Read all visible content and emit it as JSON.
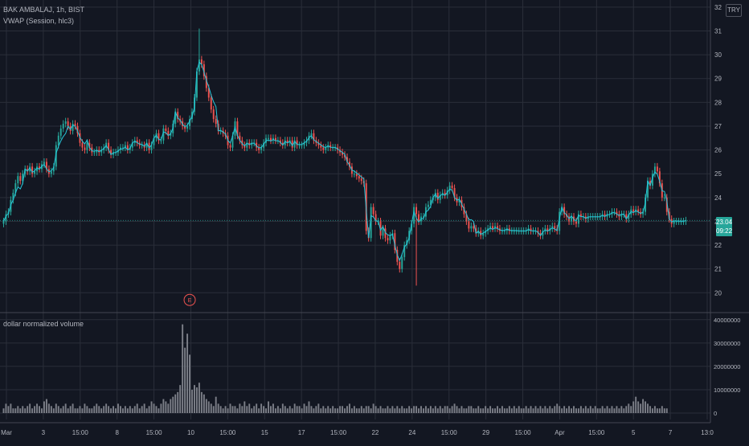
{
  "header": {
    "symbol": "BAK AMBALAJ, 1h, BIST",
    "indicator": "VWAP (Session, hlc3)",
    "currency": "TRY"
  },
  "volume_pane": {
    "title": "dollar normalized volume"
  },
  "last_price": {
    "value": "23.04",
    "countdown": "09:22"
  },
  "earnings_marker": "E",
  "colors": {
    "background": "#131722",
    "grid": "#2a2e39",
    "up": "#26a69a",
    "down": "#ef5350",
    "vwap": "#26c6da",
    "volume": "#7b7e87",
    "axis_text": "#b2b5be"
  },
  "chart_data": [
    {
      "type": "candlestick",
      "title": "BAK AMBALAJ, 1h, BIST",
      "ylim": [
        19.2,
        32.3
      ],
      "y_ticks": [
        20,
        21,
        22,
        23,
        24,
        25,
        26,
        27,
        28,
        29,
        30,
        31,
        32
      ],
      "x_ticks": [
        "Mar",
        "3",
        "15:00",
        "8",
        "15:00",
        "10",
        "15:00",
        "15",
        "17",
        "15:00",
        "22",
        "24",
        "15:00",
        "29",
        "15:00",
        "Apr",
        "15:00",
        "5",
        "7",
        "13:0"
      ],
      "grid": true,
      "close": [
        23.0,
        23.3,
        23.4,
        23.9,
        24.2,
        24.6,
        24.9,
        24.7,
        25.0,
        25.2,
        25.1,
        25.3,
        25.0,
        25.1,
        25.3,
        25.2,
        25.4,
        25.5,
        25.2,
        25.0,
        25.1,
        25.3,
        26.2,
        26.6,
        26.9,
        27.1,
        27.2,
        27.0,
        26.8,
        27.1,
        27.0,
        26.7,
        26.3,
        26.1,
        26.0,
        26.3,
        26.1,
        25.9,
        25.9,
        26.0,
        25.9,
        26.0,
        26.1,
        26.3,
        26.0,
        25.8,
        25.9,
        25.9,
        26.0,
        26.1,
        26.1,
        26.2,
        26.0,
        26.1,
        26.3,
        26.4,
        26.3,
        26.2,
        26.2,
        26.1,
        26.3,
        26.0,
        26.2,
        26.5,
        26.7,
        26.4,
        26.4,
        26.9,
        26.8,
        26.6,
        26.7,
        27.1,
        27.6,
        27.3,
        27.2,
        27.0,
        26.9,
        27.0,
        27.3,
        27.6,
        28.2,
        29.3,
        29.8,
        29.6,
        29.1,
        28.6,
        28.2,
        27.7,
        27.3,
        27.1,
        26.8,
        26.8,
        26.7,
        26.6,
        26.2,
        26.1,
        26.6,
        27.2,
        26.6,
        26.4,
        26.2,
        26.1,
        26.3,
        26.2,
        26.3,
        26.3,
        26.1,
        26.0,
        26.1,
        26.3,
        26.5,
        26.5,
        26.4,
        26.5,
        26.4,
        26.4,
        26.3,
        26.2,
        26.4,
        26.3,
        26.4,
        26.1,
        26.4,
        26.2,
        26.2,
        26.2,
        26.3,
        26.4,
        26.6,
        26.7,
        26.4,
        26.3,
        26.2,
        26.1,
        26.0,
        26.1,
        26.2,
        26.1,
        26.1,
        26.1,
        26.0,
        25.9,
        25.8,
        25.7,
        25.5,
        25.3,
        25.0,
        25.0,
        24.9,
        24.8,
        24.7,
        24.6,
        22.6,
        22.3,
        23.6,
        23.3,
        23.0,
        23.0,
        22.4,
        22.7,
        22.3,
        22.2,
        22.4,
        22.5,
        21.8,
        21.3,
        21.0,
        21.5,
        22.0,
        22.2,
        22.6,
        22.9,
        23.6,
        23.3,
        23.0,
        23.2,
        23.2,
        23.6,
        23.7,
        23.9,
        24.0,
        24.2,
        23.9,
        24.1,
        24.2,
        24.1,
        24.3,
        24.5,
        24.4,
        24.0,
        23.8,
        23.9,
        23.6,
        23.3,
        23.0,
        22.7,
        22.8,
        22.7,
        22.5,
        22.6,
        22.4,
        22.5,
        22.6,
        22.7,
        22.8,
        22.7,
        22.8,
        22.7,
        22.6,
        22.6,
        22.6,
        22.7,
        22.6,
        22.6,
        22.6,
        22.6,
        22.6,
        22.6,
        22.6,
        22.6,
        22.7,
        22.6,
        22.6,
        22.6,
        22.5,
        22.4,
        22.6,
        22.7,
        22.6,
        22.7,
        22.8,
        22.7,
        22.6,
        23.4,
        23.6,
        23.3,
        23.2,
        23.0,
        23.2,
        23.0,
        22.9,
        23.3,
        23.2,
        23.2,
        23.1,
        23.2,
        23.2,
        23.2,
        23.2,
        23.2,
        23.2,
        23.3,
        23.2,
        23.3,
        23.3,
        23.4,
        23.4,
        23.3,
        23.2,
        23.3,
        23.3,
        23.1,
        23.3,
        23.5,
        23.4,
        23.5,
        23.4,
        23.3,
        23.4,
        24.0,
        24.7,
        24.5,
        25.0,
        25.3,
        25.1,
        24.6,
        24.0,
        24.0,
        23.4,
        23.1,
        22.9,
        23.0,
        23.0,
        23.0,
        23.0,
        23.0,
        23.04
      ],
      "open": [
        22.9,
        23.0,
        23.3,
        23.4,
        23.9,
        24.2,
        24.6,
        24.9,
        24.7,
        25.0,
        25.2,
        25.1,
        25.3,
        25.0,
        25.1,
        25.3,
        25.2,
        25.4,
        25.5,
        25.2,
        25.0,
        25.1,
        25.3,
        26.2,
        26.6,
        26.9,
        27.1,
        27.2,
        27.0,
        26.8,
        27.1,
        27.0,
        26.7,
        26.3,
        26.1,
        26.0,
        26.3,
        26.1,
        25.9,
        25.9,
        26.0,
        25.9,
        26.0,
        26.1,
        26.3,
        26.0,
        25.8,
        25.9,
        25.9,
        26.0,
        26.1,
        26.1,
        26.2,
        26.0,
        26.1,
        26.3,
        26.4,
        26.3,
        26.2,
        26.2,
        26.1,
        26.3,
        26.0,
        26.2,
        26.5,
        26.7,
        26.4,
        26.4,
        26.9,
        26.8,
        26.6,
        26.7,
        27.1,
        27.6,
        27.3,
        27.2,
        27.0,
        26.9,
        27.0,
        27.3,
        27.6,
        28.2,
        29.3,
        29.8,
        29.6,
        29.1,
        28.6,
        28.2,
        27.7,
        27.3,
        27.1,
        26.8,
        26.8,
        26.7,
        26.6,
        26.2,
        26.1,
        26.6,
        27.2,
        26.6,
        26.4,
        26.2,
        26.1,
        26.3,
        26.2,
        26.3,
        26.3,
        26.1,
        26.0,
        26.1,
        26.3,
        26.5,
        26.5,
        26.4,
        26.5,
        26.4,
        26.4,
        26.3,
        26.2,
        26.4,
        26.3,
        26.4,
        26.1,
        26.4,
        26.2,
        26.2,
        26.2,
        26.3,
        26.4,
        26.6,
        26.7,
        26.4,
        26.3,
        26.2,
        26.1,
        26.0,
        26.1,
        26.2,
        26.1,
        26.1,
        26.1,
        26.0,
        25.9,
        25.8,
        25.7,
        25.5,
        25.3,
        25.0,
        25.0,
        24.9,
        24.8,
        24.7,
        24.6,
        22.6,
        22.3,
        23.6,
        23.3,
        23.0,
        23.0,
        22.4,
        22.7,
        22.3,
        22.2,
        22.4,
        22.5,
        21.8,
        21.3,
        21.0,
        21.5,
        22.0,
        22.2,
        22.6,
        22.9,
        23.6,
        23.3,
        23.0,
        23.2,
        23.2,
        23.6,
        23.7,
        23.9,
        24.0,
        24.2,
        23.9,
        24.1,
        24.2,
        24.1,
        24.3,
        24.5,
        24.4,
        24.0,
        23.8,
        23.9,
        23.6,
        23.3,
        23.0,
        22.7,
        22.8,
        22.7,
        22.5,
        22.6,
        22.4,
        22.5,
        22.6,
        22.7,
        22.8,
        22.7,
        22.8,
        22.7,
        22.6,
        22.6,
        22.6,
        22.7,
        22.6,
        22.6,
        22.6,
        22.6,
        22.6,
        22.6,
        22.6,
        22.6,
        22.7,
        22.6,
        22.6,
        22.6,
        22.5,
        22.4,
        22.6,
        22.7,
        22.6,
        22.7,
        22.8,
        22.7,
        22.6,
        23.4,
        23.6,
        23.3,
        23.2,
        23.0,
        23.2,
        23.0,
        22.9,
        23.3,
        23.2,
        23.2,
        23.1,
        23.2,
        23.2,
        23.2,
        23.2,
        23.2,
        23.2,
        23.3,
        23.2,
        23.3,
        23.3,
        23.4,
        23.4,
        23.3,
        23.2,
        23.3,
        23.3,
        23.1,
        23.3,
        23.5,
        23.4,
        23.5,
        23.4,
        23.3,
        23.4,
        24.0,
        24.7,
        24.5,
        25.0,
        25.3,
        25.1,
        24.6,
        24.0,
        24.0,
        23.4,
        23.1,
        22.9,
        23.0,
        23.0,
        23.0,
        23.0,
        23.0
      ],
      "note_high_low": {
        "period_high": 31.1,
        "period_low": 20.3
      }
    },
    {
      "type": "bar",
      "title": "dollar normalized volume",
      "ylim": [
        0,
        42000000
      ],
      "y_ticks": [
        0,
        10000000,
        20000000,
        30000000,
        40000000
      ],
      "values": [
        2,
        4,
        3,
        4,
        2,
        2,
        3,
        2,
        3,
        2,
        3,
        4,
        2,
        3,
        4,
        3,
        2,
        5,
        6,
        4,
        3,
        2,
        4,
        3,
        2,
        3,
        4,
        2,
        3,
        4,
        2,
        2,
        3,
        2,
        4,
        3,
        2,
        2,
        3,
        4,
        3,
        2,
        3,
        4,
        3,
        2,
        3,
        2,
        4,
        3,
        2,
        3,
        2,
        3,
        2,
        3,
        4,
        2,
        3,
        4,
        2,
        3,
        5,
        4,
        3,
        2,
        4,
        6,
        5,
        4,
        6,
        7,
        8,
        9,
        12,
        38,
        28,
        34,
        25,
        10,
        12,
        11,
        13,
        9,
        8,
        6,
        5,
        4,
        3,
        7,
        4,
        3,
        2,
        3,
        2,
        4,
        3,
        3,
        2,
        4,
        3,
        5,
        3,
        4,
        2,
        3,
        4,
        2,
        4,
        3,
        2,
        5,
        3,
        4,
        2,
        3,
        2,
        4,
        3,
        2,
        3,
        2,
        4,
        3,
        3,
        2,
        4,
        3,
        5,
        3,
        2,
        3,
        4,
        2,
        3,
        2,
        3,
        2,
        3,
        2,
        2,
        3,
        3,
        2,
        3,
        4,
        2,
        3,
        2,
        2,
        3,
        2,
        3,
        3,
        2,
        4,
        3,
        2,
        3,
        2,
        2,
        3,
        2,
        3,
        2,
        3,
        2,
        3,
        2,
        2,
        3,
        2,
        3,
        3,
        2,
        3,
        2,
        3,
        2,
        3,
        2,
        3,
        2,
        3,
        2,
        3,
        3,
        2,
        3,
        4,
        3,
        2,
        3,
        2,
        2,
        3,
        3,
        2,
        2,
        3,
        2,
        2,
        3,
        2,
        3,
        2,
        2,
        3,
        2,
        3,
        2,
        2,
        3,
        2,
        3,
        2,
        3,
        2,
        2,
        3,
        2,
        3,
        2,
        3,
        2,
        3,
        2,
        3,
        2,
        3,
        2,
        3,
        4,
        3,
        2,
        3,
        2,
        3,
        2,
        3,
        2,
        2,
        3,
        2,
        3,
        2,
        3,
        2,
        3,
        2,
        2,
        3,
        2,
        3,
        2,
        3,
        2,
        3,
        2,
        3,
        2,
        3,
        4,
        3,
        5,
        7,
        5,
        4,
        6,
        5,
        4,
        3,
        2,
        3,
        2,
        2,
        3,
        2,
        2
      ],
      "unit": "million dollars"
    }
  ]
}
